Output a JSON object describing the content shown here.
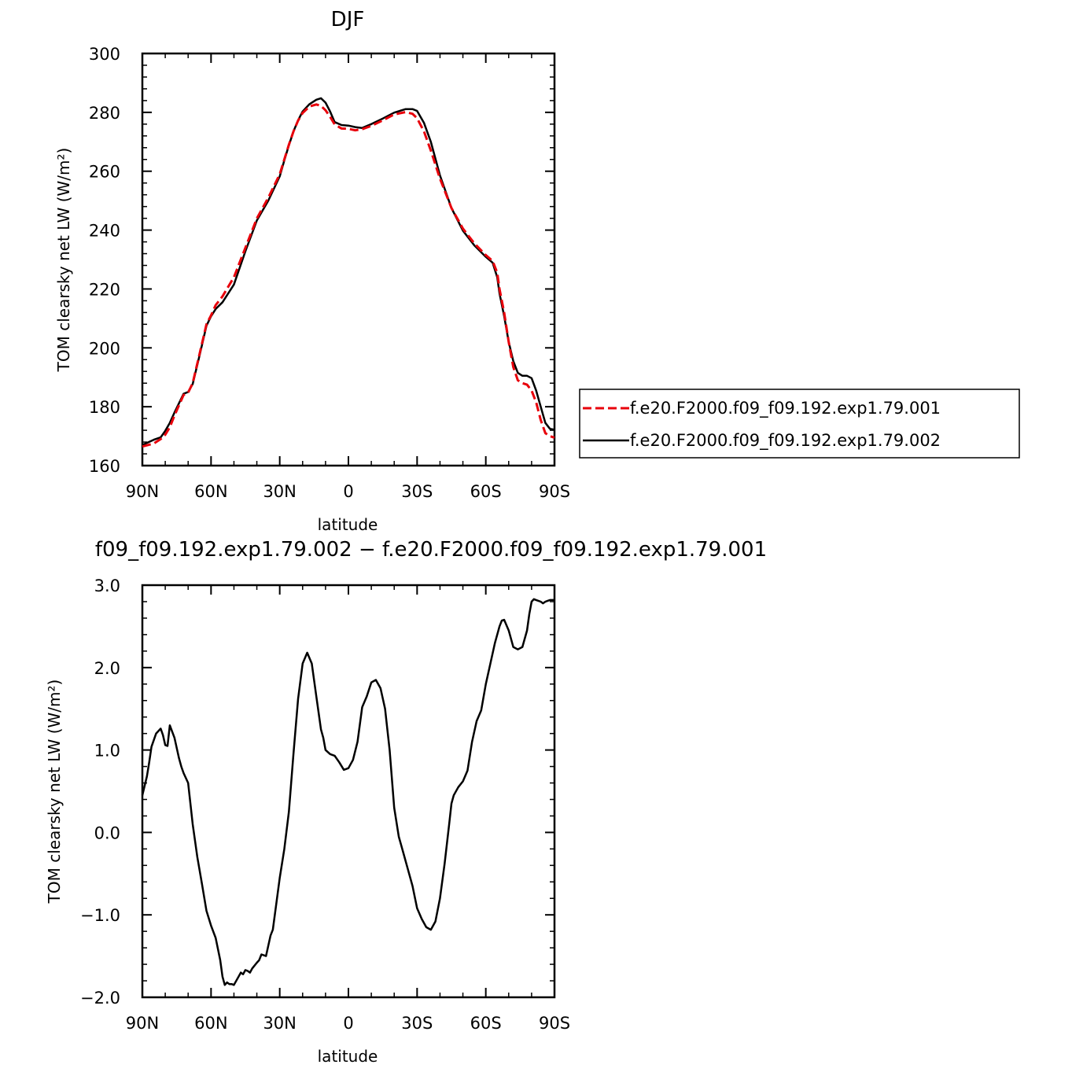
{
  "colors": {
    "exp001": "#e8000b",
    "exp002": "#000000"
  },
  "chart_data": [
    {
      "type": "line",
      "title": "DJF",
      "xlabel": "latitude",
      "ylabel": "TOM clearsky net LW (W/m²)",
      "xlim": [
        90,
        -90
      ],
      "ylim": [
        160,
        300
      ],
      "x_ticks": [
        90,
        60,
        30,
        0,
        -30,
        -60,
        -90
      ],
      "x_tick_labels": [
        "90N",
        "60N",
        "30N",
        "0",
        "30S",
        "60S",
        "90S"
      ],
      "y_ticks": [
        160,
        180,
        200,
        220,
        240,
        260,
        280,
        300
      ],
      "y_tick_labels": [
        "160",
        "180",
        "200",
        "220",
        "240",
        "260",
        "280",
        "300"
      ],
      "legend_position": "right",
      "legend_entries": [
        "f.e20.F2000.f09_f09.192.exp1.79.001",
        "f.e20.F2000.f09_f09.192.exp1.79.002"
      ],
      "x": [
        90,
        85,
        82,
        80,
        78,
        76,
        72,
        70,
        68,
        65,
        62,
        60,
        58,
        55,
        50,
        45,
        40,
        35,
        30,
        28,
        26,
        24,
        22,
        20,
        17,
        14,
        12,
        10,
        8,
        6,
        3,
        0,
        -3,
        -6,
        -10,
        -15,
        -20,
        -25,
        -28,
        -30,
        -33,
        -36,
        -40,
        -45,
        -50,
        -55,
        -60,
        -63,
        -65,
        -66,
        -68,
        -70,
        -72,
        -74,
        -76,
        -78,
        -80,
        -82,
        -84,
        -86,
        -88,
        -90
      ],
      "series": [
        {
          "name": "f.e20.F2000.f09_f09.192.exp1.79.001",
          "style": "dashed",
          "color_key": "exp001",
          "values": [
            166.5,
            167.5,
            169,
            170.5,
            173,
            177,
            184,
            184.8,
            188,
            198,
            208,
            211,
            214.5,
            217.5,
            224,
            234,
            244,
            251,
            259,
            264,
            269,
            273.5,
            277.2,
            279.8,
            282,
            282.7,
            282.2,
            280.7,
            278.5,
            275.9,
            274.5,
            274.4,
            273.9,
            274.3,
            275.4,
            277.3,
            279.3,
            280.1,
            279.5,
            278,
            273.5,
            267,
            257.5,
            247.5,
            240.5,
            235.5,
            231.5,
            229.5,
            225.5,
            220,
            212,
            202,
            193.5,
            189,
            188,
            187.5,
            185.5,
            181.5,
            175.5,
            171,
            170,
            169.5
          ]
        },
        {
          "name": "f.e20.F2000.f09_f09.192.exp1.79.002",
          "style": "solid",
          "color_key": "exp002",
          "values": [
            167,
            168.8,
            169.6,
            171.8,
            174.5,
            178,
            184.4,
            185,
            187.7,
            197.5,
            207.5,
            210.7,
            213.2,
            215.5,
            221.5,
            232.8,
            243.3,
            250,
            258.3,
            263.7,
            268.8,
            273.5,
            277.3,
            280.3,
            282.8,
            284.3,
            284.8,
            283.3,
            280.3,
            276.7,
            275.7,
            275.5,
            275,
            274.7,
            276,
            277.9,
            279.9,
            281.1,
            281.1,
            280.5,
            276.4,
            270,
            258.6,
            247.5,
            239.8,
            234.8,
            230.9,
            228.9,
            224,
            218.5,
            210.8,
            202,
            195.5,
            191.5,
            190.5,
            190.5,
            189.7,
            185.5,
            180,
            174.5,
            172.5,
            172.2
          ]
        }
      ]
    },
    {
      "type": "line",
      "title": "f09_f09.192.exp1.79.002 − f.e20.F2000.f09_f09.192.exp1.79.001",
      "xlabel": "latitude",
      "ylabel": "TOM clearsky net LW (W/m²)",
      "xlim": [
        90,
        -90
      ],
      "ylim": [
        -2,
        3
      ],
      "x_ticks": [
        90,
        60,
        30,
        0,
        -30,
        -60,
        -90
      ],
      "x_tick_labels": [
        "90N",
        "60N",
        "30N",
        "0",
        "30S",
        "60S",
        "90S"
      ],
      "y_ticks": [
        -2,
        -1,
        0,
        1,
        2,
        3
      ],
      "y_tick_labels": [
        "−2.0",
        "−1.0",
        "0.0",
        "1.0",
        "2.0",
        "3.0"
      ],
      "x": [
        90,
        88,
        87,
        86,
        84,
        82,
        81,
        80,
        79,
        78,
        76,
        74,
        73,
        72,
        70,
        68,
        66,
        64,
        62,
        60,
        58,
        56,
        55,
        54,
        53,
        52,
        51,
        50,
        48,
        47,
        46,
        45,
        44,
        43,
        42,
        40,
        39,
        38,
        36,
        34,
        33,
        30,
        28,
        26,
        24,
        22,
        20,
        18,
        16,
        14,
        12,
        11,
        10,
        8,
        6,
        4,
        2,
        0,
        -2,
        -4,
        -6,
        -8,
        -10,
        -12,
        -14,
        -16,
        -18,
        -20,
        -22,
        -24,
        -26,
        -28,
        -30,
        -32,
        -34,
        -36,
        -38,
        -40,
        -42,
        -44,
        -45,
        -46,
        -48,
        -50,
        -52,
        -54,
        -56,
        -58,
        -60,
        -62,
        -64,
        -66,
        -67,
        -68,
        -70,
        -72,
        -74,
        -76,
        -78,
        -79,
        -80,
        -81,
        -82,
        -84,
        -85,
        -86,
        -87,
        -88,
        -89,
        -90
      ],
      "series": [
        {
          "name": "",
          "style": "solid",
          "color_key": "exp002",
          "values": [
            0.45,
            0.68,
            0.85,
            1.04,
            1.2,
            1.26,
            1.18,
            1.06,
            1.05,
            1.3,
            1.15,
            0.9,
            0.8,
            0.72,
            0.6,
            0.1,
            -0.3,
            -0.62,
            -0.95,
            -1.13,
            -1.28,
            -1.55,
            -1.75,
            -1.85,
            -1.82,
            -1.84,
            -1.84,
            -1.85,
            -1.75,
            -1.7,
            -1.72,
            -1.67,
            -1.68,
            -1.7,
            -1.65,
            -1.58,
            -1.55,
            -1.48,
            -1.5,
            -1.25,
            -1.18,
            -0.55,
            -0.2,
            0.25,
            0.95,
            1.62,
            2.05,
            2.18,
            2.05,
            1.65,
            1.25,
            1.15,
            1.0,
            0.95,
            0.93,
            0.85,
            0.76,
            0.78,
            0.88,
            1.1,
            1.52,
            1.65,
            1.82,
            1.85,
            1.75,
            1.5,
            1.0,
            0.3,
            -0.05,
            -0.25,
            -0.45,
            -0.65,
            -0.92,
            -1.05,
            -1.15,
            -1.18,
            -1.08,
            -0.8,
            -0.38,
            0.1,
            0.35,
            0.45,
            0.55,
            0.62,
            0.75,
            1.1,
            1.35,
            1.48,
            1.8,
            2.05,
            2.3,
            2.5,
            2.57,
            2.58,
            2.45,
            2.25,
            2.22,
            2.25,
            2.45,
            2.65,
            2.8,
            2.83,
            2.82,
            2.8,
            2.78,
            2.8,
            2.81,
            2.82,
            2.82,
            2.82
          ]
        }
      ]
    }
  ]
}
